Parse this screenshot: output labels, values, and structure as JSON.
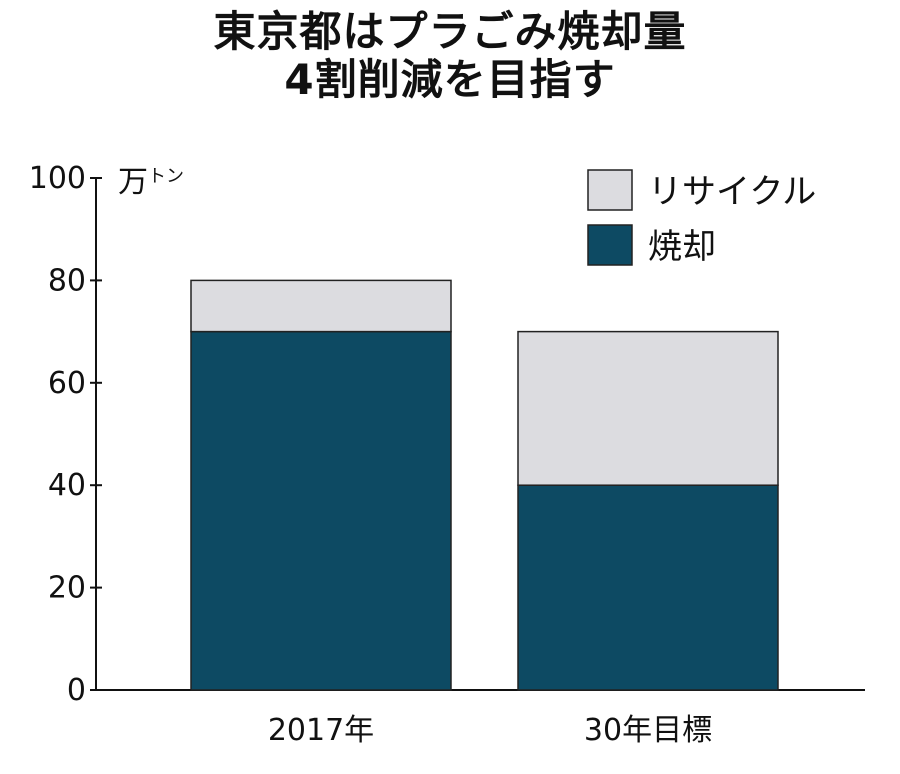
{
  "title_line1": "東京都はプラごみ焼却量",
  "title_line2": "4割削減を目指す",
  "chart_data": {
    "type": "bar",
    "stacked": true,
    "unit_main": "万",
    "unit_small": "トン",
    "categories": [
      "2017年",
      "30年目標"
    ],
    "series": [
      {
        "name": "焼却",
        "values": [
          70,
          40
        ],
        "color": "#0d4a63"
      },
      {
        "name": "リサイクル",
        "values": [
          10,
          30
        ],
        "color": "#dcdce0"
      }
    ],
    "ylim": [
      0,
      100
    ],
    "yticks": [
      0,
      20,
      40,
      60,
      80,
      100
    ],
    "grid": false,
    "legend_position": "top-right"
  }
}
